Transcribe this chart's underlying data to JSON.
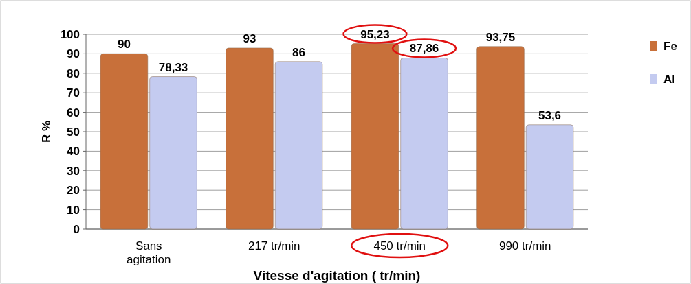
{
  "chart_data": {
    "type": "bar",
    "xlabel": "Vitesse d'agitation ( tr/min)",
    "ylabel": "R %",
    "categories": [
      "Sans agitation",
      "217 tr/min",
      "450 tr/min",
      "990 tr/min"
    ],
    "series": [
      {
        "name": "Fe",
        "color": "#c8703a",
        "values": [
          90,
          93,
          95.23,
          93.75
        ],
        "value_labels": [
          "90",
          "93",
          "95,23",
          "93,75"
        ]
      },
      {
        "name": "Al",
        "color": "#c4cbf0",
        "values": [
          78.33,
          86,
          87.86,
          53.6
        ],
        "value_labels": [
          "78,33",
          "86",
          "87,86",
          "53,6"
        ]
      }
    ],
    "ylim": [
      0,
      100
    ],
    "yticks": [
      0,
      10,
      20,
      30,
      40,
      50,
      60,
      70,
      80,
      90,
      100
    ],
    "grid": "y",
    "legend": "right"
  }
}
